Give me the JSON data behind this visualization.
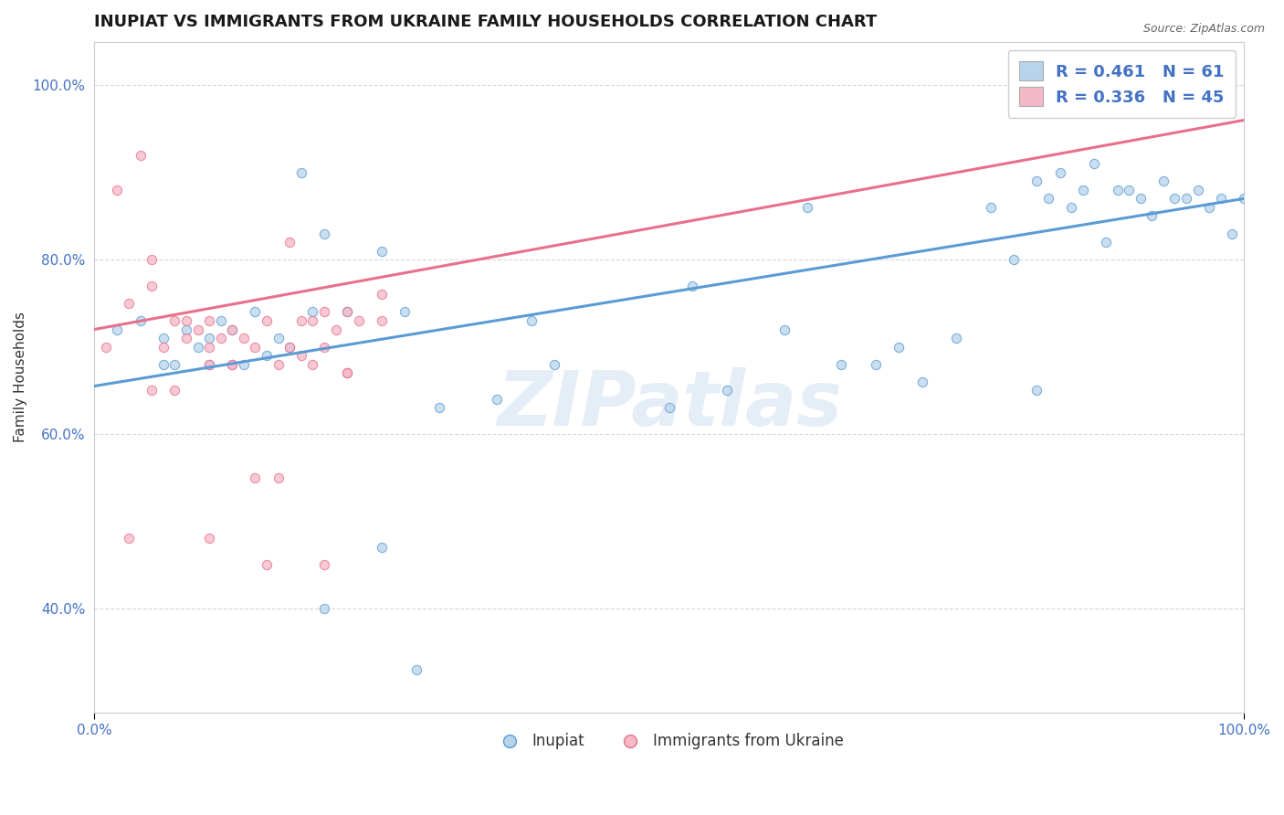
{
  "title": "INUPIAT VS IMMIGRANTS FROM UKRAINE FAMILY HOUSEHOLDS CORRELATION CHART",
  "source": "Source: ZipAtlas.com",
  "xlabel": "",
  "ylabel": "Family Households",
  "watermark": "ZIPatlas",
  "legend_label_1": "Inupiat",
  "legend_label_2": "Immigrants from Ukraine",
  "R1": 0.461,
  "N1": 61,
  "R2": 0.336,
  "N2": 45,
  "color1": "#b8d4ea",
  "color2": "#f4b8c8",
  "line_color1": "#5b9bd5",
  "line_color2": "#e8708a",
  "xmin": 0.0,
  "xmax": 1.0,
  "ymin": 0.28,
  "ymax": 1.05,
  "yticks": [
    0.4,
    0.6,
    0.8,
    1.0
  ],
  "ytick_labels": [
    "40.0%",
    "60.0%",
    "80.0%",
    "100.0%"
  ],
  "background_color": "#ffffff",
  "grid_color": "#d8d8d8",
  "title_fontsize": 13,
  "axis_label_fontsize": 11,
  "tick_fontsize": 11,
  "marker_size": 55,
  "marker_alpha": 0.75,
  "blue_x": [
    0.02,
    0.04,
    0.06,
    0.07,
    0.08,
    0.09,
    0.1,
    0.11,
    0.12,
    0.13,
    0.14,
    0.15,
    0.16,
    0.17,
    0.18,
    0.19,
    0.2,
    0.22,
    0.25,
    0.27,
    0.3,
    0.35,
    0.38,
    0.4,
    0.5,
    0.52,
    0.55,
    0.6,
    0.62,
    0.65,
    0.7,
    0.72,
    0.75,
    0.78,
    0.8,
    0.82,
    0.83,
    0.84,
    0.85,
    0.86,
    0.87,
    0.88,
    0.89,
    0.9,
    0.91,
    0.92,
    0.93,
    0.94,
    0.95,
    0.96,
    0.97,
    0.98,
    0.99,
    1.0,
    0.06,
    0.1,
    0.2,
    0.25,
    0.28,
    0.68,
    0.82
  ],
  "blue_y": [
    0.72,
    0.73,
    0.71,
    0.68,
    0.72,
    0.7,
    0.71,
    0.73,
    0.72,
    0.68,
    0.74,
    0.69,
    0.71,
    0.7,
    0.9,
    0.74,
    0.83,
    0.74,
    0.81,
    0.74,
    0.63,
    0.64,
    0.73,
    0.68,
    0.63,
    0.77,
    0.65,
    0.72,
    0.86,
    0.68,
    0.7,
    0.66,
    0.71,
    0.86,
    0.8,
    0.89,
    0.87,
    0.9,
    0.86,
    0.88,
    0.91,
    0.82,
    0.88,
    0.88,
    0.87,
    0.85,
    0.89,
    0.87,
    0.87,
    0.88,
    0.86,
    0.87,
    0.83,
    0.87,
    0.68,
    0.68,
    0.4,
    0.47,
    0.33,
    0.68,
    0.65
  ],
  "pink_x": [
    0.01,
    0.02,
    0.03,
    0.04,
    0.05,
    0.05,
    0.06,
    0.07,
    0.08,
    0.09,
    0.1,
    0.11,
    0.12,
    0.13,
    0.14,
    0.15,
    0.16,
    0.17,
    0.18,
    0.19,
    0.2,
    0.21,
    0.22,
    0.23,
    0.05,
    0.08,
    0.1,
    0.12,
    0.17,
    0.2,
    0.25,
    0.07,
    0.1,
    0.18,
    0.22,
    0.25,
    0.14,
    0.16,
    0.19,
    0.22,
    0.03,
    0.1,
    0.15,
    0.2,
    0.12
  ],
  "pink_y": [
    0.7,
    0.88,
    0.75,
    0.92,
    0.77,
    0.8,
    0.7,
    0.73,
    0.71,
    0.72,
    0.7,
    0.71,
    0.68,
    0.71,
    0.7,
    0.73,
    0.68,
    0.7,
    0.73,
    0.73,
    0.7,
    0.72,
    0.74,
    0.73,
    0.65,
    0.73,
    0.73,
    0.68,
    0.82,
    0.74,
    0.73,
    0.65,
    0.68,
    0.69,
    0.67,
    0.76,
    0.55,
    0.55,
    0.68,
    0.67,
    0.48,
    0.48,
    0.45,
    0.45,
    0.72
  ],
  "blue_trend": [
    0.655,
    0.87
  ],
  "pink_trend": [
    0.72,
    0.96
  ]
}
